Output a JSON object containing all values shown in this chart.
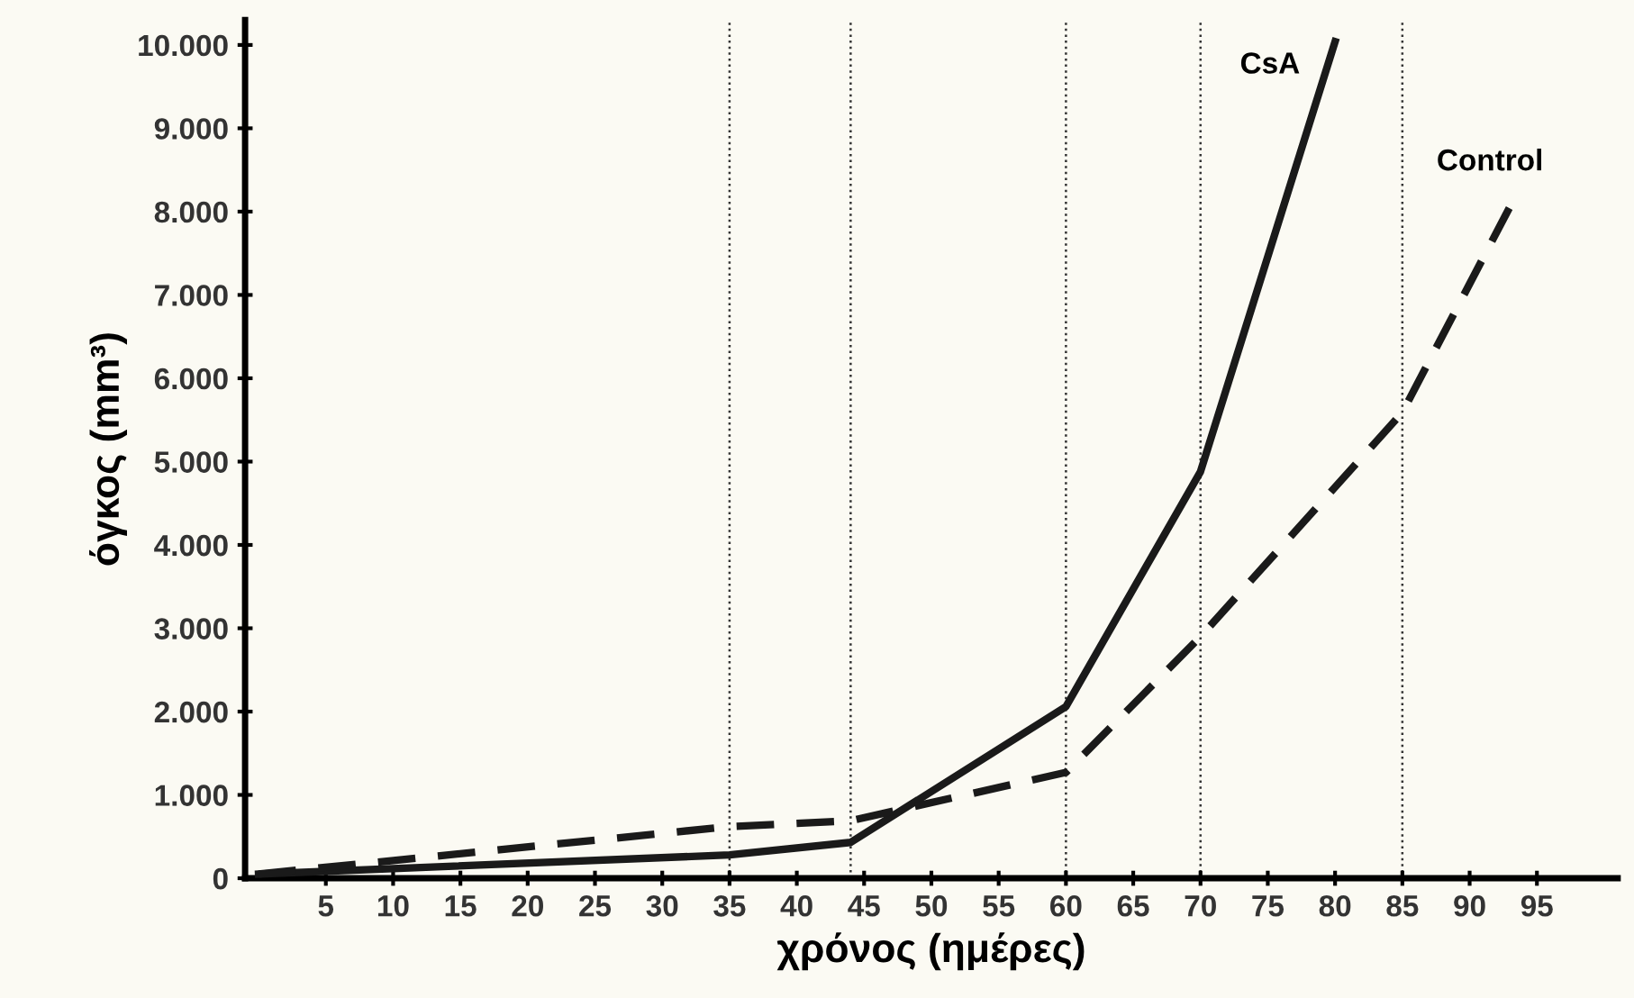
{
  "chart_data": {
    "type": "line",
    "xlabel": "χρόνος (ημέρες)",
    "ylabel": "όγκος (mm³)",
    "xlim": [
      -1,
      101
    ],
    "xticks": [
      5,
      10,
      15,
      20,
      25,
      30,
      35,
      40,
      45,
      50,
      55,
      60,
      65,
      70,
      75,
      80,
      85,
      90,
      95
    ],
    "ylim": [
      0,
      10300
    ],
    "yticks": [
      {
        "value": 0,
        "label": "0"
      },
      {
        "value": 1000,
        "label": "1.000"
      },
      {
        "value": 2000,
        "label": "2.000"
      },
      {
        "value": 3000,
        "label": "3.000"
      },
      {
        "value": 4000,
        "label": "4.000"
      },
      {
        "value": 5000,
        "label": "5.000"
      },
      {
        "value": 6000,
        "label": "6.000"
      },
      {
        "value": 7000,
        "label": "7.000"
      },
      {
        "value": 8000,
        "label": "8.000"
      },
      {
        "value": 9000,
        "label": "9.000"
      },
      {
        "value": 10000,
        "label": "10.000"
      }
    ],
    "grid": false,
    "legend": false,
    "marker": "none",
    "series": [
      {
        "name": "CsA",
        "color": "#1a1a1a",
        "line_style": "solid",
        "x": [
          0,
          35,
          44,
          60,
          70,
          80
        ],
        "values": [
          50,
          280,
          430,
          2060,
          4880,
          10040
        ]
      },
      {
        "name": "Control",
        "color": "#1a1a1a",
        "line_style": "dashed",
        "x": [
          0,
          35,
          44,
          60,
          70,
          85,
          93
        ],
        "values": [
          50,
          620,
          690,
          1270,
          2900,
          5590,
          8060
        ]
      }
    ],
    "ref_lines": [
      {
        "axis": "x",
        "value": 35,
        "color": "#333333",
        "line_style": "dotted"
      },
      {
        "axis": "x",
        "value": 44,
        "color": "#333333",
        "line_style": "dotted"
      },
      {
        "axis": "x",
        "value": 60,
        "color": "#333333",
        "line_style": "dotted"
      },
      {
        "axis": "x",
        "value": 70,
        "color": "#333333",
        "line_style": "dotted"
      },
      {
        "axis": "x",
        "value": 85,
        "color": "#333333",
        "line_style": "dotted"
      }
    ]
  }
}
